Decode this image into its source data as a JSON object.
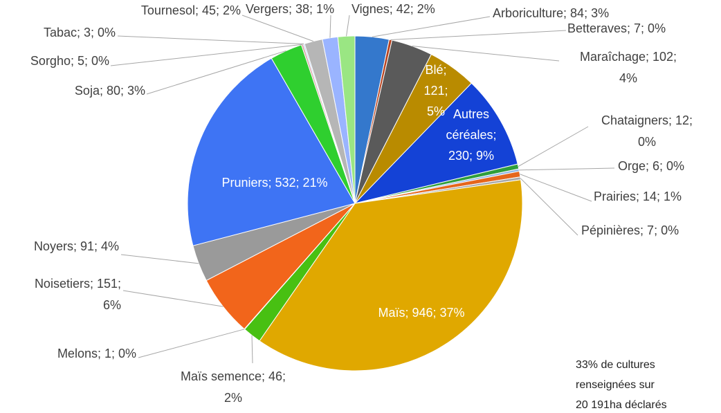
{
  "chart_data": {
    "type": "pie",
    "categories": [
      "Arboriculture",
      "Betteraves",
      "Maraîchage",
      "Blé",
      "Autres céréales",
      "Chataigners",
      "Orge",
      "Prairies",
      "Pépinières",
      "Maïs",
      "Maïs semence",
      "Melons",
      "Noisetiers",
      "Noyers",
      "Pruniers",
      "Soja",
      "Sorgho",
      "Tabac",
      "Tournesol",
      "Vergers",
      "Vignes"
    ],
    "values": [
      84,
      7,
      102,
      121,
      230,
      12,
      6,
      14,
      7,
      946,
      46,
      1,
      151,
      91,
      532,
      80,
      5,
      3,
      45,
      38,
      42
    ],
    "value_labels": [
      "Arboriculture; 84; 3%",
      "Betteraves; 7; 0%",
      "Maraîchage; 102; 4%",
      "Blé; 121; 5%",
      "Autres céréales; 230; 9%",
      "Chataigners; 12; 0%",
      "Orge; 6; 0%",
      "Prairies; 14; 1%",
      "Pépinières; 7; 0%",
      "Maïs; 946; 37%",
      "Maïs semence; 46; 2%",
      "Melons; 1; 0%",
      "Noisetiers; 151; 6%",
      "Noyers; 91; 4%",
      "Pruniers; 532; 21%",
      "Soja; 80; 3%",
      "Sorgho; 5; 0%",
      "Tabac; 3; 0%",
      "Tournesol; 45; 2%",
      "Vergers; 38; 1%",
      "Vignes; 42; 2%"
    ],
    "colors": [
      "#3478cc",
      "#b8421e",
      "#5a5a5a",
      "#b98b00",
      "#1442d6",
      "#2f9e3c",
      "#8fb6e6",
      "#e5661c",
      "#a8a8a8",
      "#e0a800",
      "#48c012",
      "#26409a",
      "#f2651b",
      "#9a9a9a",
      "#3e74f4",
      "#2fcf2f",
      "#d8a8a8",
      "#a8c4f0",
      "#b6b6b6",
      "#9ab4ff",
      "#9ae683"
    ],
    "annotation": [
      "33% de cultures",
      "renseignées sur",
      "20 191ha déclarés"
    ]
  }
}
